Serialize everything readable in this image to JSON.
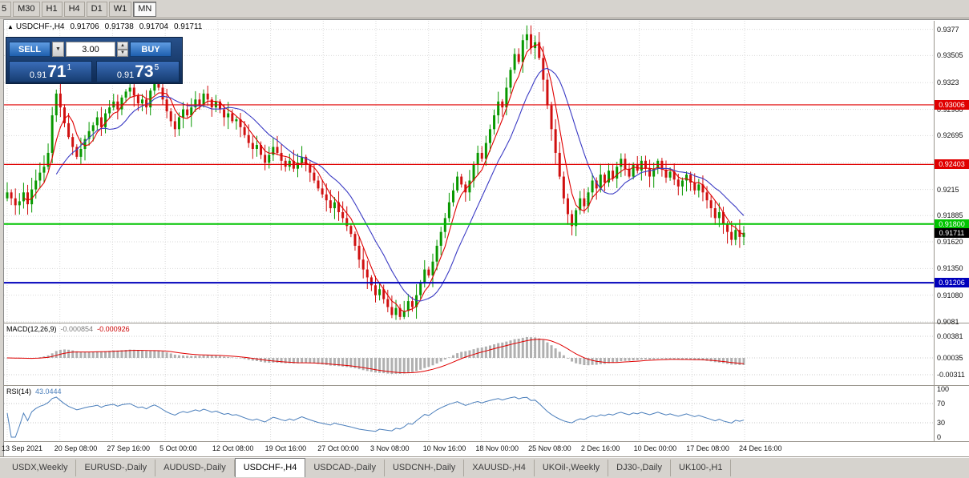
{
  "toolbar": {
    "timeframes": [
      "5",
      "M30",
      "H1",
      "H4",
      "D1",
      "W1",
      "MN"
    ],
    "active": "MN"
  },
  "chart_header": {
    "symbol": "USDCHF-,H4",
    "open": "0.91706",
    "high": "0.91738",
    "low": "0.91704",
    "close": "0.91711"
  },
  "trade_panel": {
    "sell_label": "SELL",
    "buy_label": "BUY",
    "volume": "3.00",
    "bid_prefix": "0.91",
    "bid_big": "71",
    "bid_sup": "1",
    "ask_prefix": "0.91",
    "ask_big": "73",
    "ask_sup": "5"
  },
  "price_axis": {
    "labels": [
      "0.9377",
      "0.93505",
      "0.9323",
      "0.92960",
      "0.92695",
      "0.92420",
      "0.9215",
      "0.91885",
      "0.91620",
      "0.91350",
      "0.91080",
      "0.9081"
    ]
  },
  "levels": [
    {
      "label": "0.93006",
      "value": 0.93006,
      "color": "#e00000"
    },
    {
      "label": "0.92403",
      "value": 0.92403,
      "color": "#e00000"
    },
    {
      "label": "0.91800",
      "value": 0.918,
      "color": "#00c400"
    },
    {
      "label": "0.91206",
      "value": 0.91206,
      "color": "#0000bb"
    }
  ],
  "current_price": {
    "label": "0.91711",
    "value": 0.91711,
    "color": "#000000"
  },
  "macd_panel": {
    "title": "MACD(12,26,9)",
    "value_main": "-0.000854",
    "value_signal": "-0.000926",
    "axis": [
      "0.00381",
      "0.00035",
      "-0.00311"
    ]
  },
  "rsi_panel": {
    "title": "RSI(14)",
    "value": "43.0444",
    "axis": [
      "100",
      "70",
      "30",
      "0"
    ]
  },
  "time_axis": {
    "labels": [
      "13 Sep 2021",
      "20 Sep 08:00",
      "27 Sep 16:00",
      "5 Oct 00:00",
      "12 Oct 08:00",
      "19 Oct 16:00",
      "27 Oct 00:00",
      "3 Nov 08:00",
      "10 Nov 16:00",
      "18 Nov 00:00",
      "25 Nov 08:00",
      "2 Dec 16:00",
      "10 Dec 00:00",
      "17 Dec 08:00",
      "24 Dec 16:00"
    ]
  },
  "bottom_tabs": {
    "active_index": 3,
    "items": [
      "USDX,Weekly",
      "EURUSD-,Daily",
      "AUDUSD-,Daily",
      "USDCHF-,H4",
      "USDCAD-,Daily",
      "USDCNH-,Daily",
      "XAUUSD-,H4",
      "UKOil-,Weekly",
      "DJ30-,Daily",
      "UK100-,H1"
    ]
  },
  "chart_data": {
    "type": "candlestick",
    "title": "USDCHF-,H4",
    "ylim": [
      0.9081,
      0.9384
    ],
    "x_labels": [
      "13 Sep 2021",
      "20 Sep 08:00",
      "27 Sep 16:00",
      "5 Oct 00:00",
      "12 Oct 08:00",
      "19 Oct 16:00",
      "27 Oct 00:00",
      "3 Nov 08:00",
      "10 Nov 16:00",
      "18 Nov 00:00",
      "25 Nov 08:00",
      "2 Dec 16:00",
      "10 Dec 00:00",
      "17 Dec 08:00",
      "24 Dec 16:00"
    ],
    "last_ohlc": {
      "open": 0.91706,
      "high": 0.91738,
      "low": 0.91704,
      "close": 0.91711
    },
    "horizontal_levels": [
      0.93006,
      0.92403,
      0.918,
      0.91206
    ],
    "bid": 0.91711,
    "ask": 0.91735,
    "close_path": [
      0.9212,
      0.9206,
      0.9199,
      0.9203,
      0.9212,
      0.92,
      0.9215,
      0.9224,
      0.9232,
      0.9238,
      0.9252,
      0.929,
      0.9312,
      0.9298,
      0.9282,
      0.9268,
      0.9258,
      0.9248,
      0.9256,
      0.9266,
      0.9274,
      0.928,
      0.9288,
      0.9278,
      0.9292,
      0.9298,
      0.9304,
      0.9296,
      0.9308,
      0.9314,
      0.9318,
      0.931,
      0.9302,
      0.9306,
      0.9298,
      0.9315,
      0.9326,
      0.9318,
      0.9306,
      0.9294,
      0.9284,
      0.9276,
      0.9288,
      0.9296,
      0.929,
      0.9298,
      0.9306,
      0.93,
      0.9312,
      0.9306,
      0.9298,
      0.9304,
      0.9296,
      0.9288,
      0.9292,
      0.9284,
      0.9286,
      0.9278,
      0.927,
      0.9262,
      0.9256,
      0.926,
      0.925,
      0.9242,
      0.925,
      0.9258,
      0.9252,
      0.9244,
      0.9238,
      0.9244,
      0.9236,
      0.9242,
      0.9248,
      0.924,
      0.9232,
      0.9224,
      0.9216,
      0.921,
      0.9204,
      0.9196,
      0.9202,
      0.9192,
      0.9186,
      0.9178,
      0.917,
      0.9158,
      0.9144,
      0.9134,
      0.9126,
      0.9118,
      0.9108,
      0.9114,
      0.9104,
      0.9096,
      0.9088,
      0.9095,
      0.9086,
      0.9092,
      0.9102,
      0.9096,
      0.9108,
      0.912,
      0.9134,
      0.9128,
      0.9142,
      0.9158,
      0.9172,
      0.9186,
      0.9202,
      0.9214,
      0.9228,
      0.922,
      0.9212,
      0.9224,
      0.924,
      0.9252,
      0.9246,
      0.9262,
      0.9276,
      0.929,
      0.9304,
      0.9298,
      0.9318,
      0.9336,
      0.9352,
      0.9344,
      0.9366,
      0.9372,
      0.9358,
      0.9364,
      0.9348,
      0.9326,
      0.93,
      0.9276,
      0.9252,
      0.9228,
      0.9206,
      0.919,
      0.9178,
      0.9194,
      0.9206,
      0.9198,
      0.9212,
      0.9224,
      0.9216,
      0.923,
      0.9222,
      0.9234,
      0.9226,
      0.9238,
      0.9246,
      0.9236,
      0.9228,
      0.924,
      0.9234,
      0.9244,
      0.9236,
      0.9228,
      0.9236,
      0.9244,
      0.9235,
      0.9227,
      0.9233,
      0.9225,
      0.9218,
      0.9224,
      0.923,
      0.9222,
      0.9214,
      0.922,
      0.9212,
      0.9204,
      0.9196,
      0.9186,
      0.9192,
      0.918,
      0.9172,
      0.9164,
      0.9174,
      0.9167,
      0.91711
    ],
    "indicators": {
      "macd": {
        "fast": 12,
        "slow": 26,
        "signal": 9,
        "main": -0.000854,
        "signal_value": -0.000926,
        "axis_max": 0.00381,
        "axis_min": -0.00311
      },
      "rsi": {
        "period": 14,
        "value": 43.0444,
        "levels": [
          70,
          30
        ]
      }
    }
  }
}
